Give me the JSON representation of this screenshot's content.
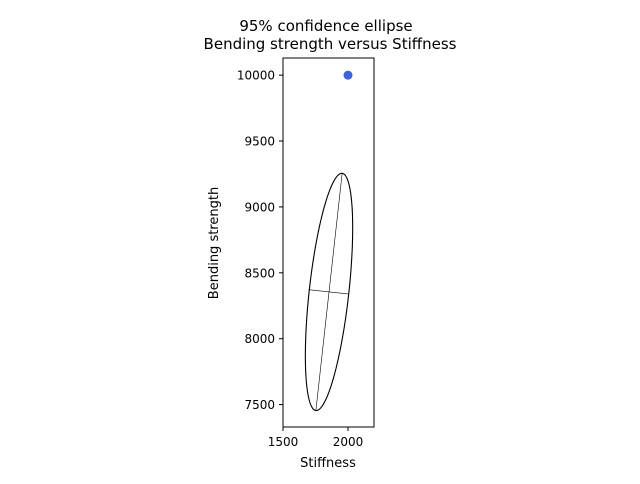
{
  "chart_data": {
    "type": "scatter",
    "title_line1": "95% confidence ellipse",
    "title_line2": "Bending strength versus Stiffness",
    "xlabel": "Stiffness",
    "ylabel": "Bending strength",
    "xlim": [
      1500,
      2200
    ],
    "ylim": [
      7330,
      10130
    ],
    "x_ticks": [
      1500,
      2000
    ],
    "y_ticks": [
      7500,
      8000,
      8500,
      9000,
      9500,
      10000
    ],
    "grid": false,
    "point_color": "#4063d8",
    "points": [
      {
        "x": 2000,
        "y": 10000
      }
    ],
    "ellipse": {
      "center": [
        1854,
        8355
      ],
      "major_axis_endpoints": [
        [
          1955,
          9255
        ],
        [
          1753,
          7455
        ]
      ],
      "minor_axis_endpoints": [
        [
          1697,
          8372
        ],
        [
          2000,
          8340
        ]
      ],
      "color": "#000000"
    }
  }
}
